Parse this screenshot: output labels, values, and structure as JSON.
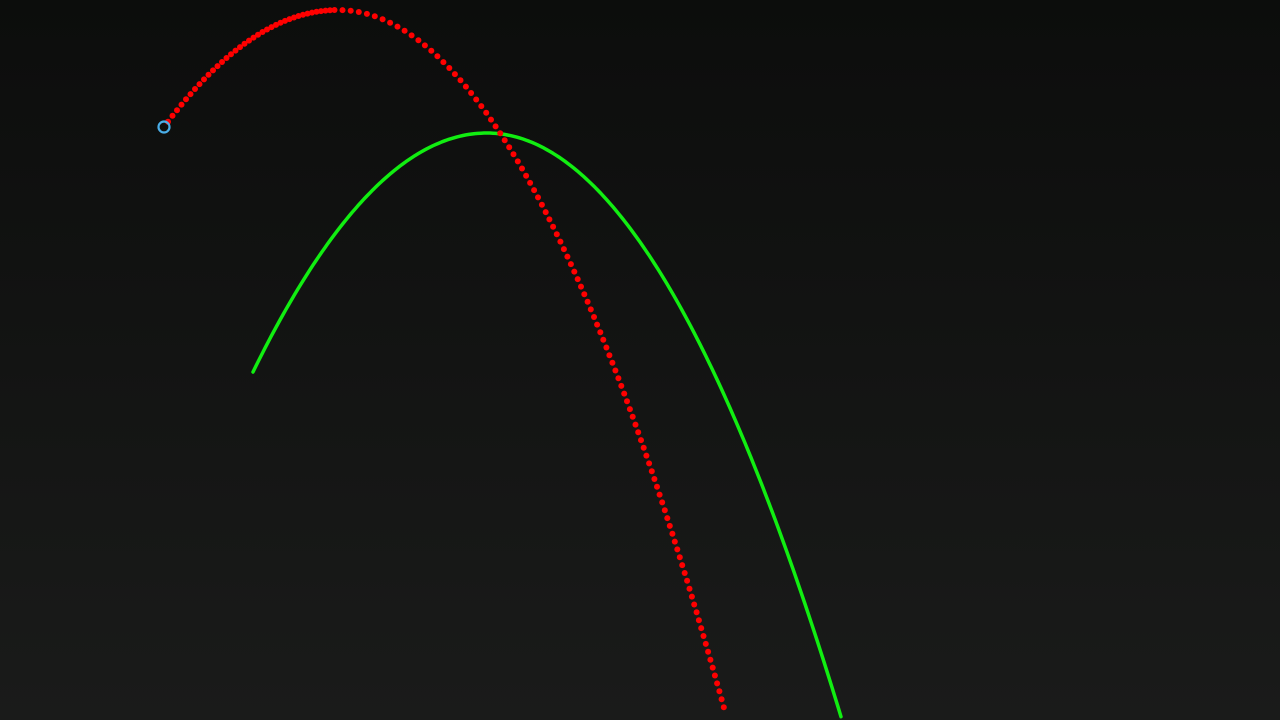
{
  "scene": {
    "name": "projectile-trajectory-view",
    "background_top": "#0c0d0c",
    "background_bottom": "#1a1b1a"
  },
  "predicted_path": {
    "name": "green-predicted-arc",
    "color": "#11ee11"
  },
  "actual_path": {
    "name": "red-dotted-trajectory",
    "color": "#ff0000"
  },
  "launch_marker": {
    "name": "launch-point-marker",
    "color": "#4aaee8"
  }
}
